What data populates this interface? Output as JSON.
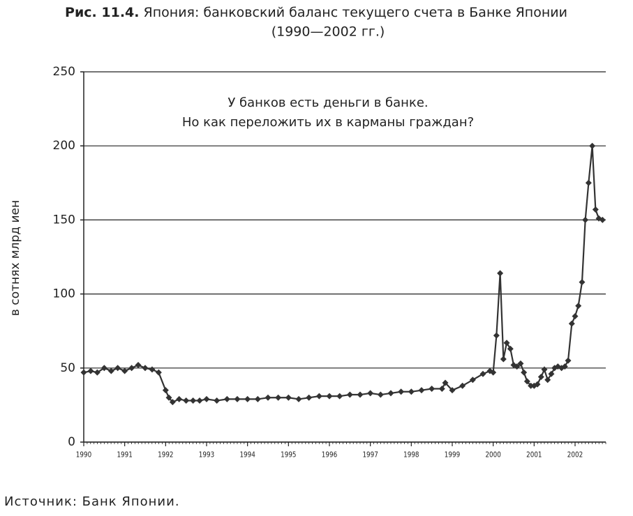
{
  "chart_data": {
    "type": "line",
    "figure_label": "Рис. 11.4.",
    "title": "Япония: банковский баланс текущего счета в Банке Японии",
    "subtitle": "(1990—2002 гг.)",
    "annotation": [
      "У банков есть деньги в банке.",
      "Но как переложить их в карманы граждан?"
    ],
    "ylabel": "в сотнях млрд иен",
    "source": "Источник: Банк Японии.",
    "xlim": [
      1990,
      2002.75
    ],
    "xticks": [
      1990,
      1991,
      1992,
      1993,
      1994,
      1995,
      1996,
      1997,
      1998,
      1999,
      2000,
      2001,
      2002
    ],
    "ylim": [
      0,
      250
    ],
    "yticks": [
      0,
      50,
      100,
      150,
      200,
      250
    ],
    "grid": true,
    "x": [
      1990.0,
      1990.17,
      1990.33,
      1990.5,
      1990.67,
      1990.83,
      1991.0,
      1991.17,
      1991.33,
      1991.5,
      1991.67,
      1991.83,
      1992.0,
      1992.08,
      1992.17,
      1992.33,
      1992.5,
      1992.67,
      1992.83,
      1993.0,
      1993.25,
      1993.5,
      1993.75,
      1994.0,
      1994.25,
      1994.5,
      1994.75,
      1995.0,
      1995.25,
      1995.5,
      1995.75,
      1996.0,
      1996.25,
      1996.5,
      1996.75,
      1997.0,
      1997.25,
      1997.5,
      1997.75,
      1998.0,
      1998.25,
      1998.5,
      1998.75,
      1998.83,
      1999.0,
      1999.25,
      1999.5,
      1999.75,
      1999.92,
      2000.0,
      2000.08,
      2000.17,
      2000.25,
      2000.33,
      2000.42,
      2000.5,
      2000.58,
      2000.67,
      2000.75,
      2000.83,
      2000.92,
      2001.0,
      2001.08,
      2001.17,
      2001.25,
      2001.33,
      2001.42,
      2001.5,
      2001.58,
      2001.67,
      2001.75,
      2001.83,
      2001.92,
      2002.0,
      2002.08,
      2002.17,
      2002.25,
      2002.33,
      2002.42,
      2002.5,
      2002.58,
      2002.67
    ],
    "series": [
      {
        "color": "#333333",
        "values": [
          47,
          48,
          47,
          50,
          48,
          50,
          48,
          50,
          52,
          50,
          49,
          47,
          35,
          30,
          27,
          29,
          28,
          28,
          28,
          29,
          28,
          29,
          29,
          29,
          29,
          30,
          30,
          30,
          29,
          30,
          31,
          31,
          31,
          32,
          32,
          33,
          32,
          33,
          34,
          34,
          35,
          36,
          36,
          40,
          35,
          38,
          42,
          46,
          48,
          47,
          72,
          114,
          56,
          67,
          63,
          52,
          51,
          53,
          47,
          41,
          38,
          38,
          39,
          44,
          49,
          42,
          46,
          50,
          51,
          50,
          51,
          55,
          80,
          85,
          92,
          108,
          150,
          175,
          200,
          157,
          151,
          150
        ]
      }
    ]
  }
}
